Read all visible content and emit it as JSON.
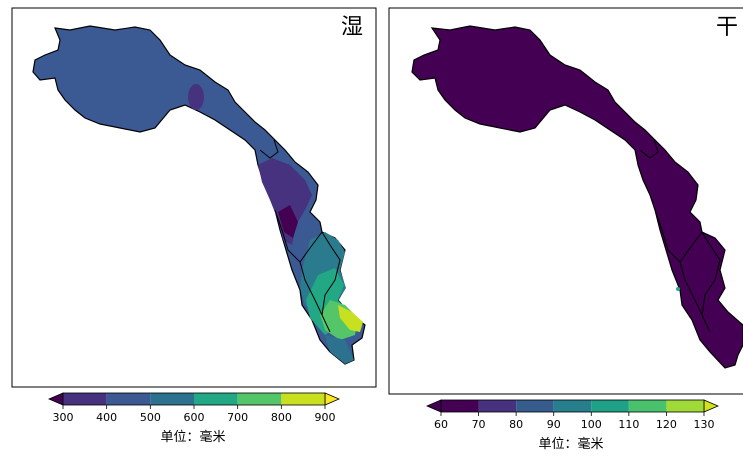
{
  "chart_data": [
    {
      "type": "heatmap",
      "title": "湿",
      "colorbar": {
        "levels": [
          300,
          400,
          500,
          600,
          700,
          800,
          900
        ],
        "tick_labels": [
          "300",
          "400",
          "500",
          "600",
          "700",
          "800",
          "900"
        ],
        "colors": [
          "#440154",
          "#443983",
          "#31688e",
          "#21918c",
          "#35b779",
          "#90d743",
          "#fde725"
        ],
        "extend": "both",
        "label": "单位：毫米"
      }
    },
    {
      "type": "heatmap",
      "title": "干",
      "colorbar": {
        "levels": [
          60,
          70,
          80,
          90,
          100,
          110,
          120,
          130
        ],
        "tick_labels": [
          "60",
          "70",
          "80",
          "90",
          "100",
          "110",
          "120",
          "130"
        ],
        "colors": [
          "#440154",
          "#46327e",
          "#365c8d",
          "#277f8e",
          "#1fa187",
          "#4ac16d",
          "#a0da39",
          "#fde725"
        ],
        "extend": "both",
        "label": "单位：毫米"
      }
    }
  ],
  "colors": {
    "map_dry_fill": "#440154",
    "map_wet_base": "#3b5a94"
  }
}
